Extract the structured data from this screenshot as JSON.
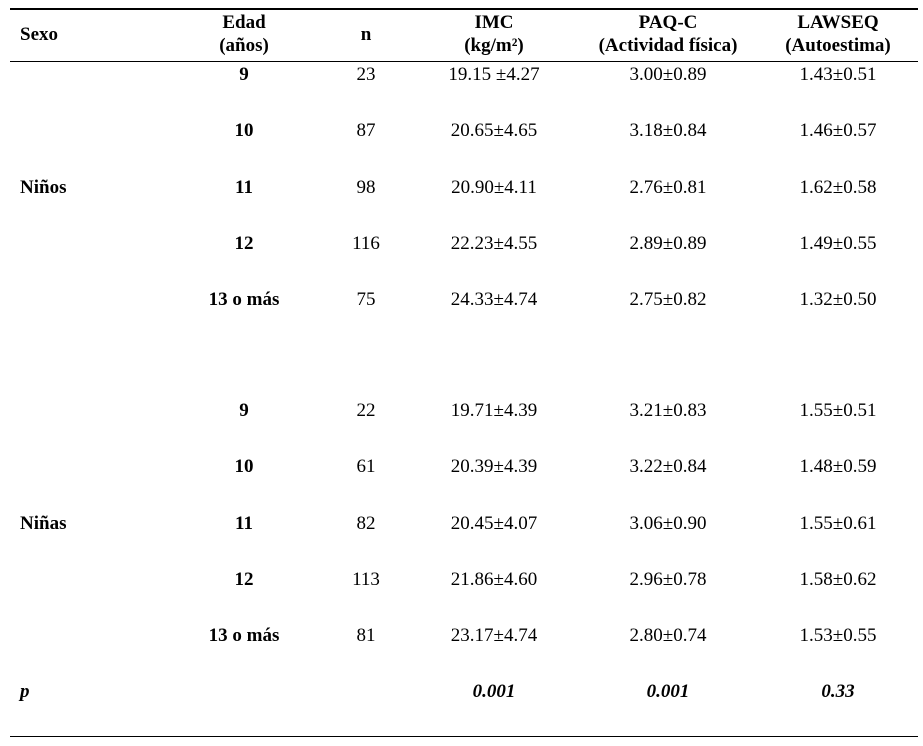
{
  "header": [
    {
      "lines": [
        "Sexo"
      ]
    },
    {
      "lines": [
        "Edad",
        "(años)"
      ]
    },
    {
      "lines": [
        "n"
      ]
    },
    {
      "lines": [
        "IMC",
        "(kg/m²)"
      ]
    },
    {
      "lines": [
        "PAQ-C",
        "(Actividad física)"
      ]
    },
    {
      "lines": [
        "LAWSEQ",
        "(Autoestima)"
      ]
    }
  ],
  "groups": [
    {
      "sex": "Niños",
      "rows": [
        [
          "9",
          "23",
          "19.15 ±4.27",
          "3.00±0.89",
          "1.43±0.51"
        ],
        [
          "10",
          "87",
          "20.65±4.65",
          "3.18±0.84",
          "1.46±0.57"
        ],
        [
          "11",
          "98",
          "20.90±4.11",
          "2.76±0.81",
          "1.62±0.58"
        ],
        [
          "12",
          "116",
          "22.23±4.55",
          "2.89±0.89",
          "1.49±0.55"
        ],
        [
          "13 o más",
          "75",
          "24.33±4.74",
          "2.75±0.82",
          "1.32±0.50"
        ]
      ]
    },
    {
      "sex": "Niñas",
      "rows": [
        [
          "9",
          "22",
          "19.71±4.39",
          "3.21±0.83",
          "1.55±0.51"
        ],
        [
          "10",
          "61",
          "20.39±4.39",
          "3.22±0.84",
          "1.48±0.59"
        ],
        [
          "11",
          "82",
          "20.45±4.07",
          "3.06±0.90",
          "1.55±0.61"
        ],
        [
          "12",
          "113",
          "21.86±4.60",
          "2.96±0.78",
          "1.58±0.62"
        ],
        [
          "13 o más",
          "81",
          "23.17±4.74",
          "2.80±0.74",
          "1.53±0.55"
        ]
      ]
    }
  ],
  "p_row": {
    "label": "p",
    "values": [
      "0.001",
      "0.001",
      "0.33"
    ]
  }
}
